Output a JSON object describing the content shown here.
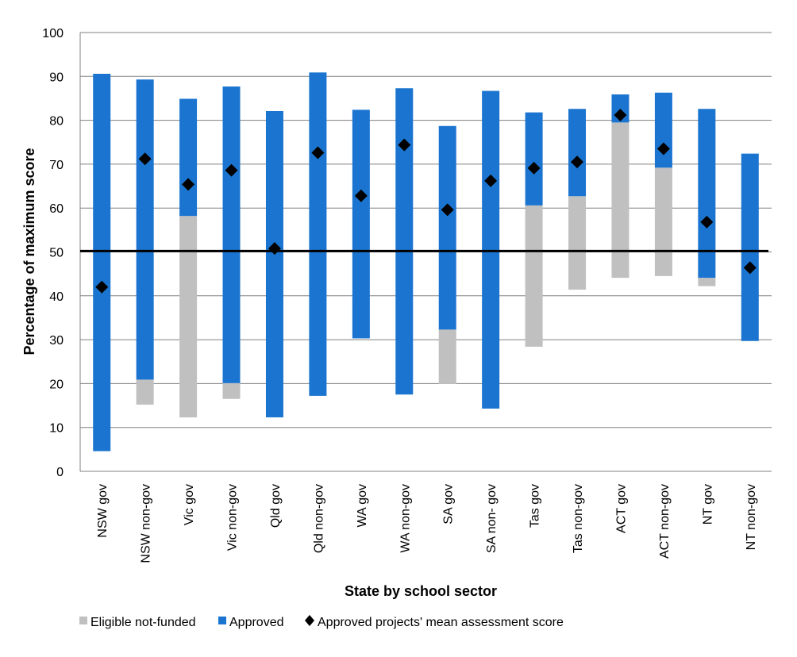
{
  "chart_data": {
    "type": "bar",
    "xlabel": "State by school sector",
    "ylabel": "Percentage of maximum score",
    "ylim": [
      0,
      100
    ],
    "yticks": [
      "0",
      "10",
      "20",
      "30",
      "40",
      "50",
      "60",
      "70",
      "80",
      "90",
      "100"
    ],
    "grid": true,
    "legend_position": "bottom",
    "reference_line": 50.2,
    "categories": [
      "NSW gov",
      "NSW non-gov",
      "Vic gov",
      "Vic non-gov",
      "Qld gov",
      "Qld non-gov",
      "WA gov",
      "WA non-gov",
      "SA gov",
      "SA non- gov",
      "Tas gov",
      "Tas non-gov",
      "ACT gov",
      "ACT non-gov",
      "NT gov",
      "NT non-gov"
    ],
    "series": [
      {
        "name": "Eligible not-funded",
        "color": "#c0c0c0",
        "ranges": [
          [
            4.6,
            4.6
          ],
          [
            15.2,
            20.9
          ],
          [
            12.3,
            58.2
          ],
          [
            16.5,
            20.1
          ],
          [
            12.3,
            12.3
          ],
          [
            17.2,
            17.2
          ],
          [
            30.3,
            30.3
          ],
          [
            17.5,
            17.5
          ],
          [
            19.9,
            32.3
          ],
          [
            14.3,
            14.3
          ],
          [
            28.4,
            60.6
          ],
          [
            41.4,
            62.7
          ],
          [
            44.1,
            79.5
          ],
          [
            44.5,
            69.2
          ],
          [
            42.2,
            44.1
          ],
          [
            29.7,
            29.7
          ]
        ]
      },
      {
        "name": "Approved",
        "color": "#1b75d0",
        "ranges": [
          [
            4.6,
            90.6
          ],
          [
            20.9,
            89.3
          ],
          [
            58.2,
            84.9
          ],
          [
            20.1,
            87.7
          ],
          [
            12.3,
            82.1
          ],
          [
            17.2,
            90.9
          ],
          [
            30.3,
            82.4
          ],
          [
            17.5,
            87.3
          ],
          [
            32.3,
            78.7
          ],
          [
            14.3,
            86.7
          ],
          [
            60.6,
            81.8
          ],
          [
            62.7,
            82.6
          ],
          [
            79.5,
            85.9
          ],
          [
            69.2,
            86.3
          ],
          [
            44.1,
            82.6
          ],
          [
            29.7,
            72.4
          ]
        ]
      },
      {
        "name": "Approved projects' mean assessment score",
        "color": "#000000",
        "values": [
          42.0,
          71.2,
          65.4,
          68.6,
          50.8,
          72.6,
          62.8,
          74.4,
          59.6,
          66.2,
          69.1,
          70.5,
          81.2,
          73.5,
          56.8,
          46.4
        ]
      }
    ]
  }
}
